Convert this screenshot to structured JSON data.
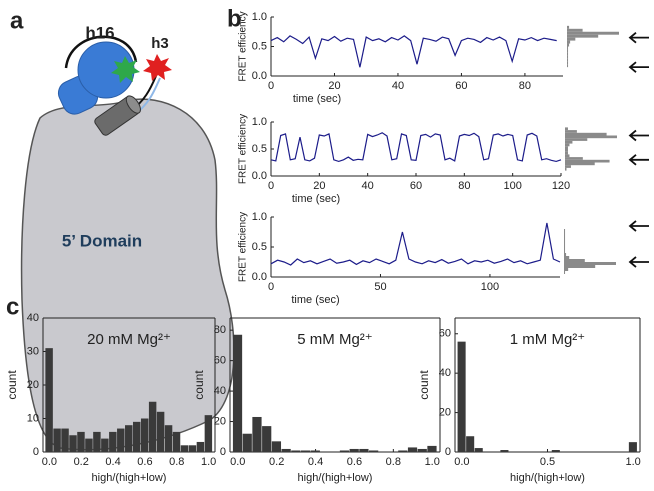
{
  "panel_labels": {
    "a": "a",
    "b": "b",
    "c": "c"
  },
  "diagram": {
    "helix_left": "h16",
    "helix_right": "h3",
    "domain": "5’ Domain"
  },
  "chart_data": [
    {
      "type": "line",
      "xlabel": "time (sec)",
      "ylabel": "FRET efficiency",
      "color": "#1c1c8a",
      "x": [
        0,
        2,
        4,
        6,
        8,
        10,
        12,
        14,
        16,
        18,
        20,
        22,
        24,
        26,
        28,
        30,
        32,
        34,
        36,
        38,
        40,
        42,
        44,
        46,
        48,
        50,
        52,
        54,
        56,
        58,
        60,
        62,
        64,
        66,
        68,
        70,
        72,
        74,
        76,
        78,
        80,
        82,
        84,
        86,
        88,
        90
      ],
      "values": [
        0.6,
        0.65,
        0.58,
        0.68,
        0.62,
        0.55,
        0.66,
        0.3,
        0.63,
        0.6,
        0.67,
        0.59,
        0.64,
        0.62,
        0.15,
        0.66,
        0.6,
        0.63,
        0.58,
        0.65,
        0.61,
        0.68,
        0.6,
        0.2,
        0.64,
        0.62,
        0.59,
        0.66,
        0.63,
        0.35,
        0.6,
        0.64,
        0.62,
        0.57,
        0.65,
        0.61,
        0.66,
        0.6,
        0.25,
        0.63,
        0.61,
        0.65,
        0.6,
        0.64,
        0.62,
        0.6
      ],
      "xlim": [
        0,
        92
      ],
      "xticks": [
        0,
        20,
        40,
        60,
        80
      ],
      "ylim": [
        0,
        1
      ],
      "yticks": [
        {
          "value": 0,
          "label": "0.0"
        },
        0.5,
        {
          "value": 1,
          "label": "1.0"
        }
      ],
      "side_histogram": {
        "color": "#8a8a8a",
        "bins": [
          0,
          0.05,
          0.1,
          0.15,
          0.2,
          0.25,
          0.3,
          0.35,
          0.4,
          0.45,
          0.5,
          0.55,
          0.6,
          0.65,
          0.7,
          0.75,
          0.8,
          0.85,
          0.9,
          0.95,
          1
        ],
        "counts": [
          0,
          0,
          0,
          1,
          1,
          1,
          1,
          1,
          1,
          1,
          2,
          3,
          8,
          30,
          50,
          15,
          2,
          0,
          0,
          0
        ]
      },
      "arrows": [
        0.65,
        0.15
      ]
    },
    {
      "type": "line",
      "xlabel": "time (sec)",
      "ylabel": "FRET efficiency",
      "color": "#1c1c8a",
      "x": [
        0,
        2,
        4,
        6,
        8,
        10,
        12,
        14,
        16,
        18,
        20,
        22,
        24,
        26,
        28,
        30,
        32,
        34,
        36,
        38,
        40,
        42,
        44,
        46,
        48,
        50,
        52,
        54,
        56,
        58,
        60,
        62,
        64,
        66,
        68,
        70,
        72,
        74,
        76,
        78,
        80,
        82,
        84,
        86,
        88,
        90,
        92,
        94,
        96,
        98,
        100,
        102,
        104,
        106,
        108,
        110,
        112,
        114,
        116,
        118,
        120
      ],
      "values": [
        0.3,
        0.28,
        0.75,
        0.78,
        0.3,
        0.32,
        0.72,
        0.3,
        0.28,
        0.33,
        0.76,
        0.74,
        0.78,
        0.3,
        0.27,
        0.3,
        0.35,
        0.29,
        0.31,
        0.3,
        0.77,
        0.73,
        0.76,
        0.8,
        0.74,
        0.3,
        0.32,
        0.78,
        0.75,
        0.3,
        0.29,
        0.75,
        0.77,
        0.72,
        0.78,
        0.76,
        0.3,
        0.33,
        0.28,
        0.74,
        0.77,
        0.75,
        0.79,
        0.73,
        0.3,
        0.32,
        0.76,
        0.78,
        0.74,
        0.77,
        0.75,
        0.3,
        0.28,
        0.76,
        0.79,
        0.74,
        0.3,
        0.32,
        0.29,
        0.27,
        0.3
      ],
      "xlim": [
        0,
        120
      ],
      "xticks": [
        0,
        20,
        40,
        60,
        80,
        100,
        120
      ],
      "ylim": [
        0,
        1
      ],
      "yticks": [
        {
          "value": 0,
          "label": "0.0"
        },
        0.5,
        {
          "value": 1,
          "label": "1.0"
        }
      ],
      "side_histogram": {
        "color": "#8a8a8a",
        "bins": [
          0,
          0.05,
          0.1,
          0.15,
          0.2,
          0.25,
          0.3,
          0.35,
          0.4,
          0.45,
          0.5,
          0.55,
          0.6,
          0.65,
          0.7,
          0.75,
          0.8,
          0.85,
          0.9,
          0.95,
          1
        ],
        "counts": [
          0,
          0,
          1,
          4,
          20,
          30,
          12,
          3,
          2,
          2,
          2,
          3,
          5,
          15,
          35,
          28,
          8,
          2,
          0,
          0
        ]
      },
      "arrows": [
        0.75,
        0.3
      ]
    },
    {
      "type": "line",
      "xlabel": "time (sec)",
      "ylabel": "FRET efficiency",
      "color": "#1c1c8a",
      "x": [
        0,
        3,
        6,
        9,
        12,
        15,
        18,
        21,
        24,
        27,
        30,
        33,
        36,
        39,
        42,
        45,
        48,
        51,
        54,
        57,
        60,
        63,
        66,
        69,
        72,
        75,
        78,
        81,
        84,
        87,
        90,
        93,
        96,
        99,
        102,
        105,
        108,
        111,
        114,
        117,
        120,
        123,
        126,
        129,
        132
      ],
      "values": [
        0.22,
        0.28,
        0.25,
        0.2,
        0.3,
        0.24,
        0.27,
        0.22,
        0.26,
        0.3,
        0.23,
        0.25,
        0.28,
        0.21,
        0.27,
        0.24,
        0.3,
        0.26,
        0.22,
        0.28,
        0.75,
        0.3,
        0.25,
        0.22,
        0.27,
        0.24,
        0.29,
        0.23,
        0.26,
        0.3,
        0.22,
        0.27,
        0.25,
        0.28,
        0.23,
        0.26,
        0.3,
        0.24,
        0.27,
        0.22,
        0.25,
        0.28,
        0.9,
        0.3,
        0.25
      ],
      "xlim": [
        0,
        132
      ],
      "xticks": [
        0,
        50,
        100
      ],
      "ylim": [
        0,
        1
      ],
      "yticks": [
        {
          "value": 0,
          "label": "0.0"
        },
        0.5,
        {
          "value": 1,
          "label": "1.0"
        }
      ],
      "side_histogram": {
        "color": "#8a8a8a",
        "bins": [
          0,
          0.05,
          0.1,
          0.15,
          0.2,
          0.25,
          0.3,
          0.35,
          0.4,
          0.45,
          0.5,
          0.55,
          0.6,
          0.65,
          0.7,
          0.75,
          0.8,
          0.85,
          0.9,
          0.95,
          1
        ],
        "counts": [
          0,
          1,
          4,
          30,
          50,
          20,
          5,
          2,
          1,
          1,
          1,
          1,
          1,
          1,
          1,
          1,
          0,
          0,
          0,
          0
        ]
      },
      "arrows": [
        0.85,
        0.25
      ]
    },
    {
      "type": "histogram",
      "title": "20 mM Mg²⁺",
      "xlabel": "high/(high+low)",
      "ylabel": "count",
      "color": "#3a3a3a",
      "bins": [
        -0.025,
        0.025,
        0.075,
        0.125,
        0.175,
        0.225,
        0.275,
        0.325,
        0.375,
        0.425,
        0.475,
        0.525,
        0.575,
        0.625,
        0.675,
        0.725,
        0.775,
        0.825,
        0.875,
        0.925,
        0.975,
        1.025
      ],
      "values": [
        31,
        7,
        7,
        5,
        6,
        4,
        6,
        4,
        6,
        7,
        8,
        9,
        10,
        15,
        12,
        8,
        6,
        2,
        2,
        3,
        11
      ],
      "xlim": [
        -0.04,
        1.04
      ],
      "xticks": [
        {
          "value": 0,
          "label": "0.0"
        },
        0.2,
        0.4,
        0.6,
        0.8,
        {
          "value": 1,
          "label": "1.0"
        }
      ],
      "ylim": [
        0,
        40
      ],
      "yticks": [
        0,
        10,
        20,
        30,
        40
      ]
    },
    {
      "type": "histogram",
      "title": "5 mM Mg²⁺",
      "xlabel": "high/(high+low)",
      "ylabel": "count",
      "color": "#3a3a3a",
      "bins": [
        -0.025,
        0.025,
        0.075,
        0.125,
        0.175,
        0.225,
        0.275,
        0.325,
        0.375,
        0.425,
        0.475,
        0.525,
        0.575,
        0.625,
        0.675,
        0.725,
        0.775,
        0.825,
        0.875,
        0.925,
        0.975,
        1.025
      ],
      "values": [
        77,
        12,
        23,
        17,
        7,
        2,
        1,
        1,
        1,
        0,
        0,
        1,
        2,
        2,
        1,
        0,
        0,
        1,
        3,
        2,
        4
      ],
      "xlim": [
        -0.04,
        1.04
      ],
      "xticks": [
        {
          "value": 0,
          "label": "0.0"
        },
        0.2,
        0.4,
        0.6,
        0.8,
        {
          "value": 1,
          "label": "1.0"
        }
      ],
      "ylim": [
        0,
        88
      ],
      "yticks": [
        0,
        20,
        40,
        60,
        80
      ]
    },
    {
      "type": "histogram",
      "title": "1 mM Mg²⁺",
      "xlabel": "high/(high+low)",
      "ylabel": "count",
      "color": "#3a3a3a",
      "bins": [
        -0.025,
        0.025,
        0.075,
        0.125,
        0.175,
        0.225,
        0.275,
        0.325,
        0.375,
        0.425,
        0.475,
        0.525,
        0.575,
        0.625,
        0.675,
        0.725,
        0.775,
        0.825,
        0.875,
        0.925,
        0.975,
        1.025
      ],
      "values": [
        56,
        8,
        2,
        0,
        0,
        1,
        0,
        0,
        0,
        0,
        0,
        1,
        0,
        0,
        0,
        0,
        0,
        0,
        0,
        0,
        5
      ],
      "xlim": [
        -0.04,
        1.04
      ],
      "xticks": [
        {
          "value": 0,
          "label": "0.0"
        },
        0.5,
        {
          "value": 1,
          "label": "1.0"
        }
      ],
      "ylim": [
        0,
        68
      ],
      "yticks": [
        0,
        20,
        40,
        60
      ]
    }
  ]
}
